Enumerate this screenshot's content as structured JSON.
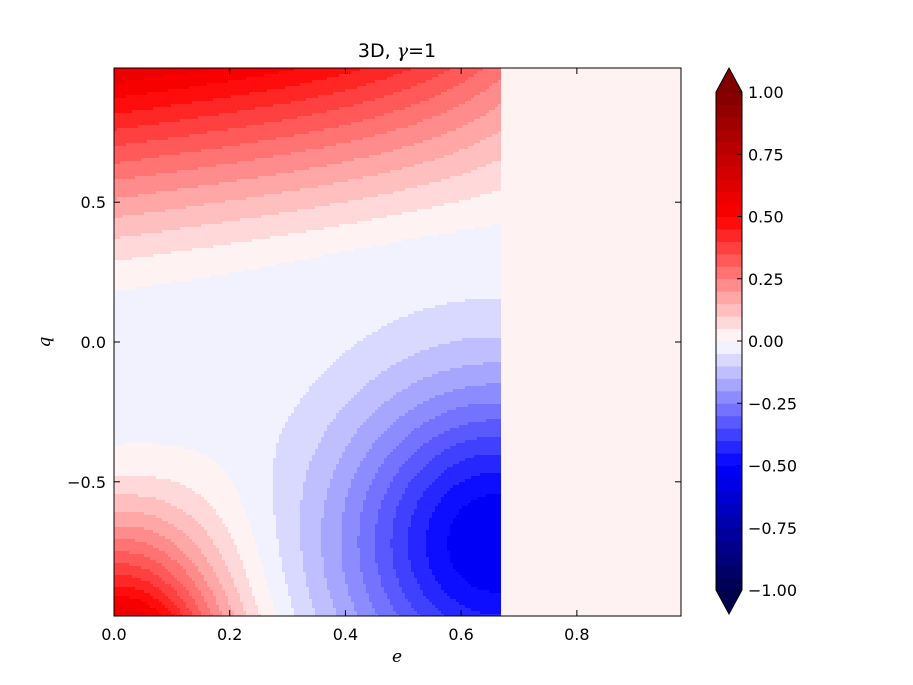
{
  "chart_data": {
    "type": "contourf",
    "title_prefix": "3D, ",
    "title_symbol": "γ",
    "title_suffix": "=1",
    "xlabel": "e",
    "ylabel": "q",
    "xlim": [
      0.0,
      0.98
    ],
    "ylim": [
      -0.98,
      0.98
    ],
    "x_ticks": [
      {
        "value": 0.0,
        "label": "0.0"
      },
      {
        "value": 0.2,
        "label": "0.2"
      },
      {
        "value": 0.4,
        "label": "0.4"
      },
      {
        "value": 0.6,
        "label": "0.6"
      },
      {
        "value": 0.8,
        "label": "0.8"
      }
    ],
    "y_ticks": [
      {
        "value": 0.5,
        "label": "0.5"
      },
      {
        "value": 0.0,
        "label": "0.0"
      },
      {
        "value": -0.5,
        "label": "−0.5"
      }
    ],
    "colormap": "seismic",
    "colorbar": {
      "range": [
        -1.0,
        1.0
      ],
      "extend": "both",
      "levels": 40,
      "ticks": [
        {
          "value": 1.0,
          "label": "1.00"
        },
        {
          "value": 0.75,
          "label": "0.75"
        },
        {
          "value": 0.5,
          "label": "0.50"
        },
        {
          "value": 0.25,
          "label": "0.25"
        },
        {
          "value": 0.0,
          "label": "0.00"
        },
        {
          "value": -0.25,
          "label": "−0.25"
        },
        {
          "value": -0.5,
          "label": "−0.50"
        },
        {
          "value": -0.75,
          "label": "−0.75"
        },
        {
          "value": -1.0,
          "label": "−1.00"
        }
      ]
    },
    "field_cutoff_e": 0.667,
    "field_value_beyond_cutoff": 0.0,
    "field_extremes": {
      "max_positive": 0.6,
      "min_negative": -0.55,
      "min_location": {
        "e": 0.66,
        "q": -0.72
      }
    }
  }
}
